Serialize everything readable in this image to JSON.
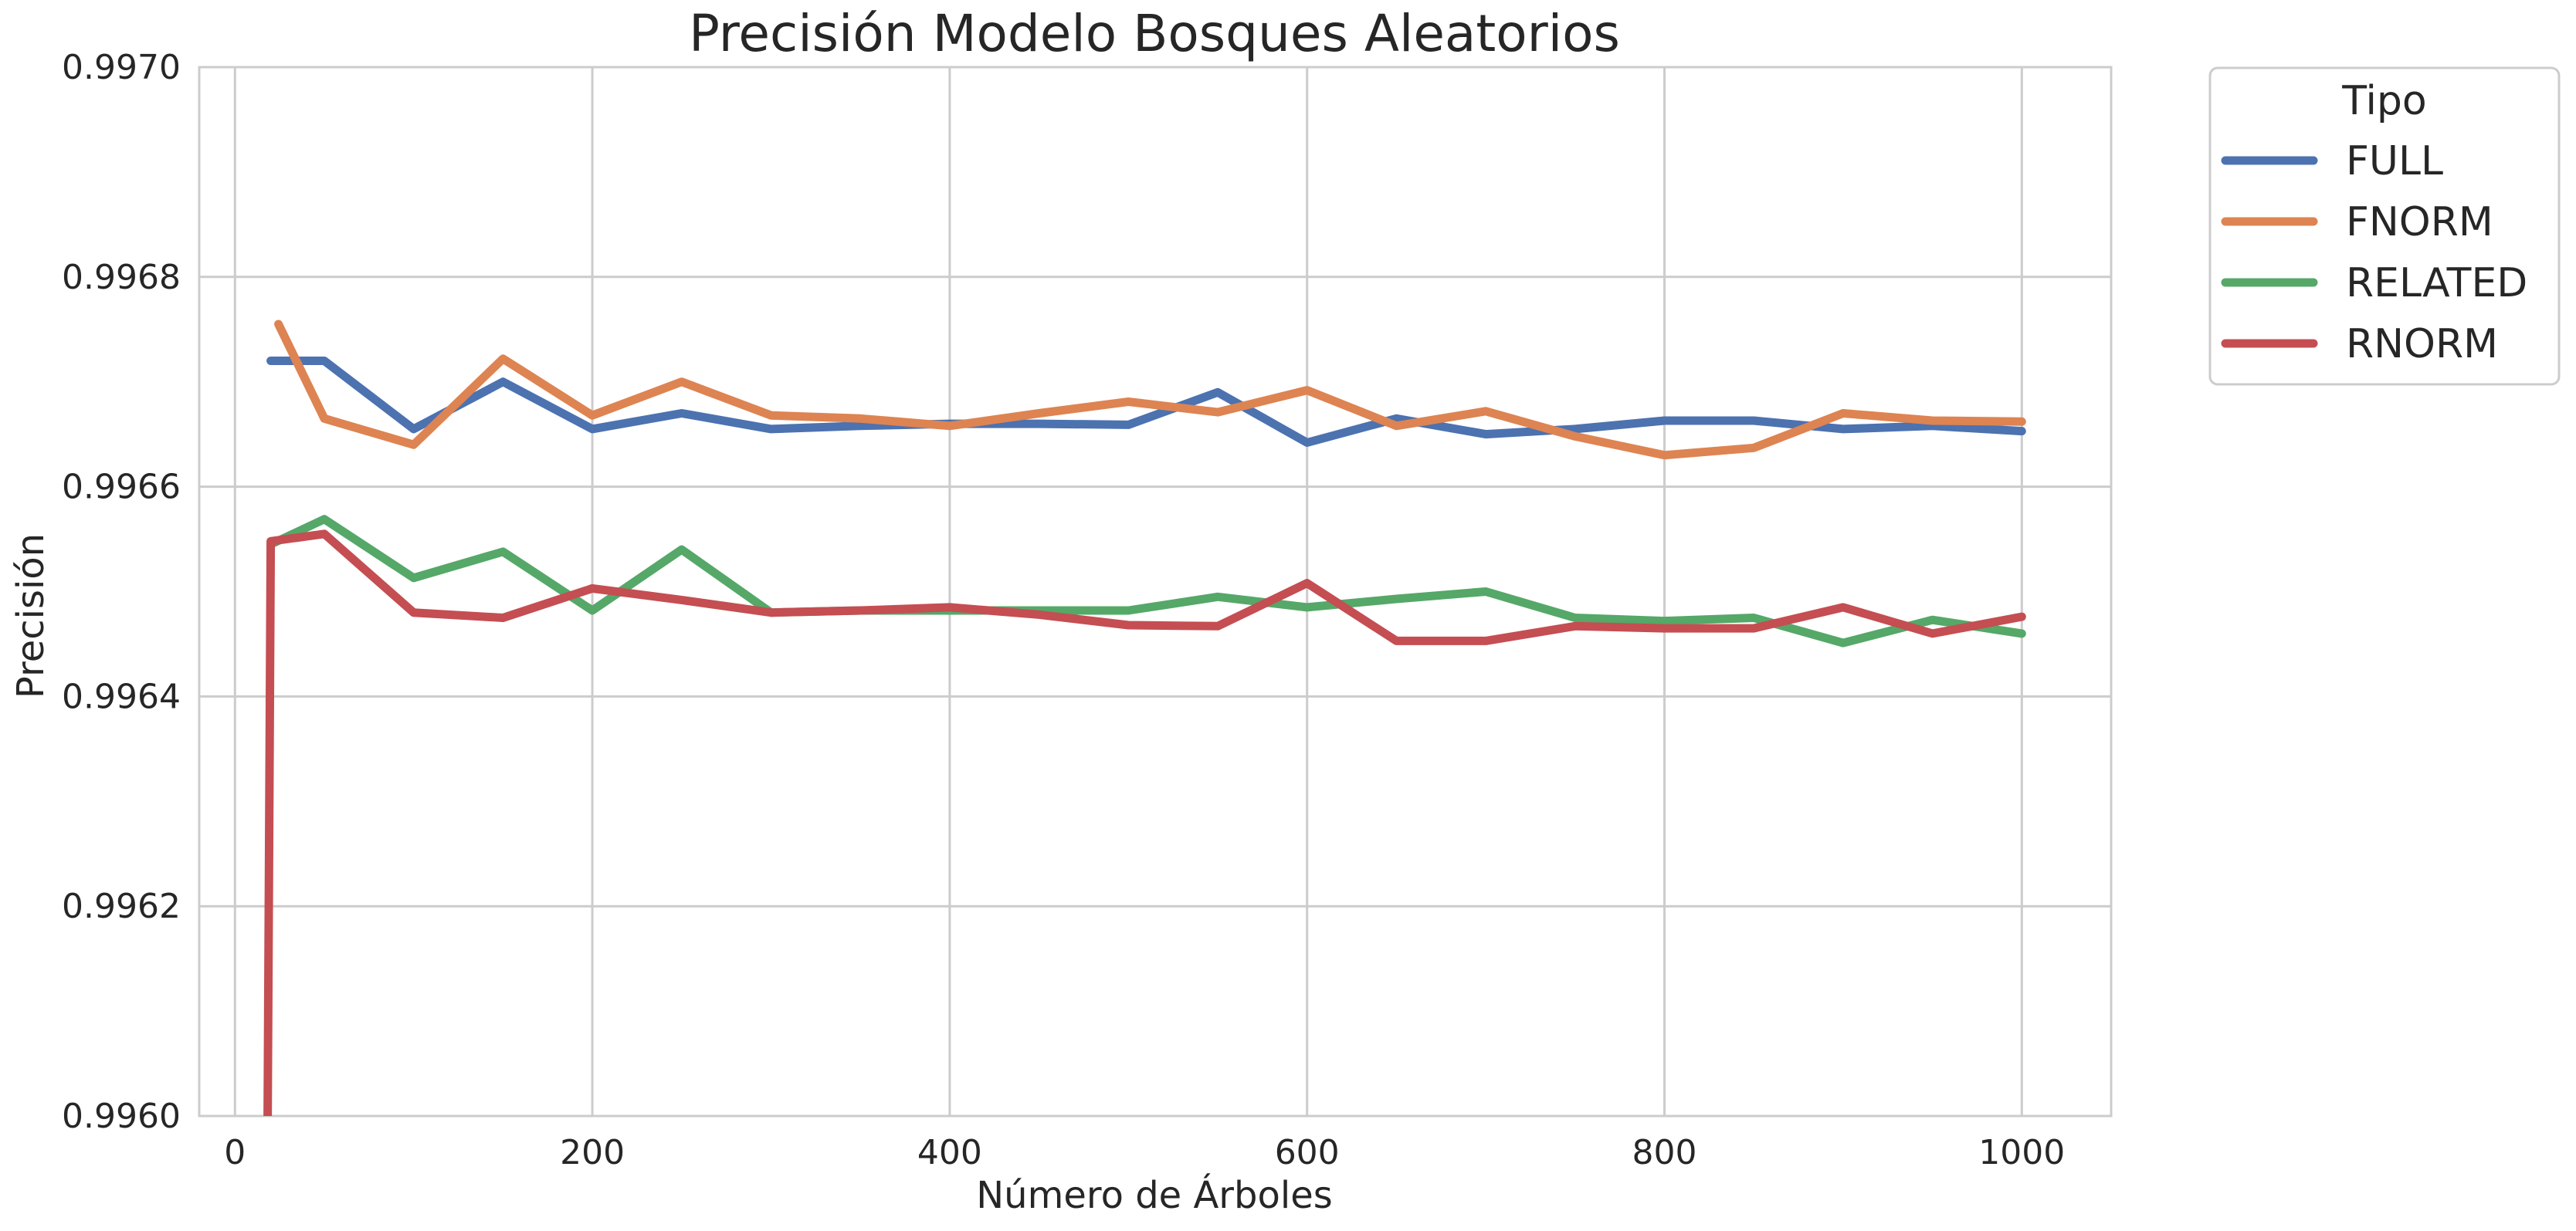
{
  "chart_data": {
    "type": "line",
    "title": "Precisión Modelo Bosques Aleatorios",
    "xlabel": "Número de Árboles",
    "ylabel": "Precisión",
    "xlim": [
      -20,
      1050
    ],
    "ylim": [
      0.996,
      0.997
    ],
    "x_ticks": [
      0,
      200,
      400,
      600,
      800,
      1000
    ],
    "x_tick_labels": [
      "0",
      "200",
      "400",
      "600",
      "800",
      "1000"
    ],
    "y_ticks": [
      0.996,
      0.9962,
      0.9964,
      0.9966,
      0.9968,
      0.997
    ],
    "y_tick_labels": [
      "0.9960",
      "0.9962",
      "0.9964",
      "0.9966",
      "0.9968",
      "0.9970"
    ],
    "grid": true,
    "legend": {
      "title": "Tipo",
      "placement": "outside-top-right"
    },
    "x": [
      20,
      50,
      100,
      150,
      200,
      250,
      300,
      350,
      400,
      450,
      500,
      550,
      600,
      650,
      700,
      750,
      800,
      850,
      900,
      950,
      1000
    ],
    "series": [
      {
        "name": "FULL",
        "color": "#4c72b0",
        "values": [
          0.99672,
          0.99672,
          0.996655,
          0.9967,
          0.996655,
          0.99667,
          0.996655,
          0.996658,
          0.99666,
          0.99666,
          0.996659,
          0.99669,
          0.996642,
          0.996665,
          0.99665,
          0.996655,
          0.996663,
          0.996663,
          0.996655,
          0.996658,
          0.996653
        ]
      },
      {
        "name": "FNORM",
        "color": "#dd8452",
        "values": [
          0.996755,
          0.996665,
          0.99664,
          0.996722,
          0.996668,
          0.9967,
          0.996668,
          0.996665,
          0.996658,
          0.99667,
          0.996681,
          0.996671,
          0.996692,
          0.996658,
          0.996672,
          0.996648,
          0.99663,
          0.996637,
          0.99667,
          0.996663,
          0.996662
        ]
      },
      {
        "name": "RELATED",
        "color": "#55a868",
        "values": [
          0.996545,
          0.996569,
          0.996513,
          0.996538,
          0.996482,
          0.99654,
          0.99648,
          0.996482,
          0.996482,
          0.996482,
          0.996482,
          0.996495,
          0.996485,
          0.996493,
          0.9965,
          0.996475,
          0.996472,
          0.996475,
          0.996451,
          0.996473,
          0.99646
        ]
      },
      {
        "name": "RNORM",
        "color": "#c44e52",
        "values": [
          0.996548,
          0.996555,
          0.99648,
          0.996475,
          0.996503,
          0.996492,
          0.99648,
          0.996482,
          0.996485,
          0.996478,
          0.996468,
          0.996467,
          0.996508,
          0.996453,
          0.996453,
          0.996467,
          0.996465,
          0.996465,
          0.996485,
          0.99646,
          0.996476
        ]
      }
    ],
    "rnorm_drop": {
      "x": 18,
      "value": 0.9959
    }
  }
}
